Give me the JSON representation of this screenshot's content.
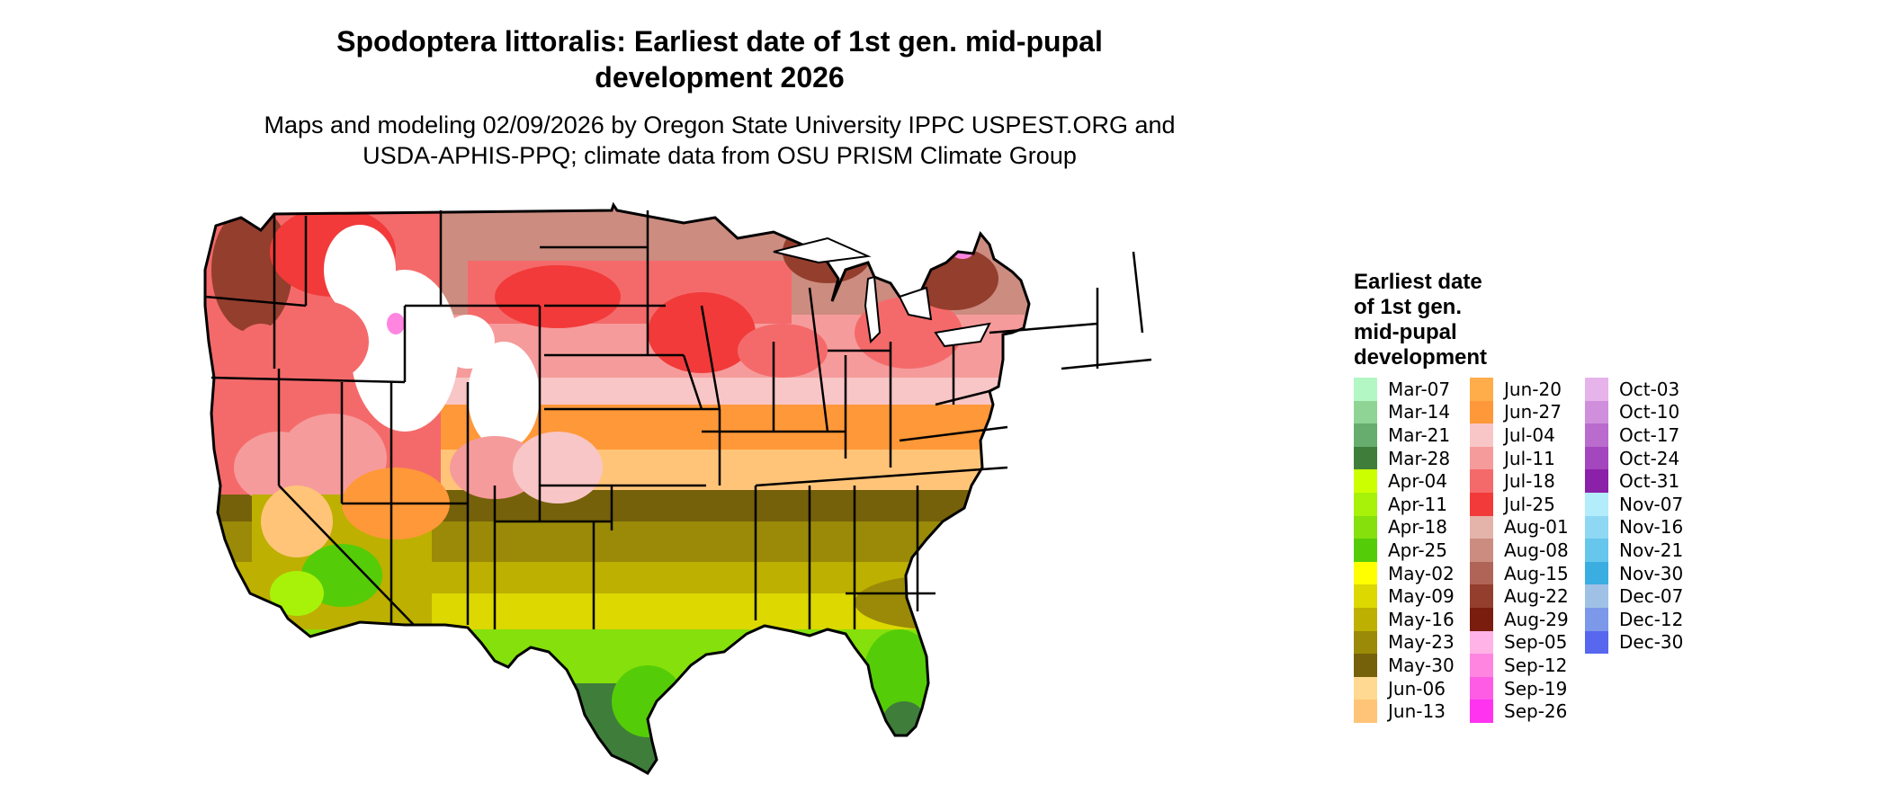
{
  "title": {
    "line1": "Spodoptera littoralis: Earliest date of 1st gen. mid-pupal",
    "line2": "development 2026"
  },
  "subtitle": {
    "line1": "Maps and modeling 02/09/2026 by Oregon State University IPPC USPEST.ORG and",
    "line2": "USDA-APHIS-PPQ; climate data from OSU PRISM Climate Group"
  },
  "legend": {
    "title_lines": [
      "Earliest date",
      "of 1st gen.",
      "mid-pupal",
      "development"
    ],
    "columns": [
      [
        {
          "label": "Mar-07",
          "color": "#b3f7c5"
        },
        {
          "label": "Mar-14",
          "color": "#8fd495"
        },
        {
          "label": "Mar-21",
          "color": "#66ad6e"
        },
        {
          "label": "Mar-28",
          "color": "#3f7d3b"
        },
        {
          "label": "Apr-04",
          "color": "#ccff00"
        },
        {
          "label": "Apr-11",
          "color": "#a8f20a"
        },
        {
          "label": "Apr-18",
          "color": "#85e00c"
        },
        {
          "label": "Apr-25",
          "color": "#55cc08"
        },
        {
          "label": "May-02",
          "color": "#ffff00"
        },
        {
          "label": "May-09",
          "color": "#dcd800"
        },
        {
          "label": "May-16",
          "color": "#bdb000"
        },
        {
          "label": "May-23",
          "color": "#9a8a07"
        },
        {
          "label": "May-30",
          "color": "#75610a"
        },
        {
          "label": "Jun-06",
          "color": "#ffd992"
        },
        {
          "label": "Jun-13",
          "color": "#ffc478"
        }
      ],
      [
        {
          "label": "Jun-20",
          "color": "#ffac4a"
        },
        {
          "label": "Jun-27",
          "color": "#ff9838"
        },
        {
          "label": "Jul-04",
          "color": "#f8c6c6"
        },
        {
          "label": "Jul-11",
          "color": "#f69b9b"
        },
        {
          "label": "Jul-18",
          "color": "#f46a6a"
        },
        {
          "label": "Jul-25",
          "color": "#f23a3a"
        },
        {
          "label": "Aug-01",
          "color": "#e4b4aa"
        },
        {
          "label": "Aug-08",
          "color": "#cc8c80"
        },
        {
          "label": "Aug-15",
          "color": "#b06458"
        },
        {
          "label": "Aug-22",
          "color": "#943e2e"
        },
        {
          "label": "Aug-29",
          "color": "#7a1c0e"
        },
        {
          "label": "Sep-05",
          "color": "#ffb3e6"
        },
        {
          "label": "Sep-12",
          "color": "#ff85e0"
        },
        {
          "label": "Sep-19",
          "color": "#ff5ce6"
        },
        {
          "label": "Sep-26",
          "color": "#ff33f0"
        }
      ],
      [
        {
          "label": "Oct-03",
          "color": "#e6b3ea"
        },
        {
          "label": "Oct-10",
          "color": "#d08fdc"
        },
        {
          "label": "Oct-17",
          "color": "#b96ccd"
        },
        {
          "label": "Oct-24",
          "color": "#a446bd"
        },
        {
          "label": "Oct-31",
          "color": "#8b21a8"
        },
        {
          "label": "Nov-07",
          "color": "#b3ecfa"
        },
        {
          "label": "Nov-16",
          "color": "#8ed8f4"
        },
        {
          "label": "Nov-21",
          "color": "#67c6ec"
        },
        {
          "label": "Nov-30",
          "color": "#3aaee0"
        },
        {
          "label": "Dec-07",
          "color": "#a0c1e6"
        },
        {
          "label": "Dec-12",
          "color": "#7c98e8"
        },
        {
          "label": "Dec-30",
          "color": "#5767ee"
        }
      ]
    ]
  },
  "map": {
    "no_data_color": "#ffffff",
    "boundary_color": "#000000"
  }
}
